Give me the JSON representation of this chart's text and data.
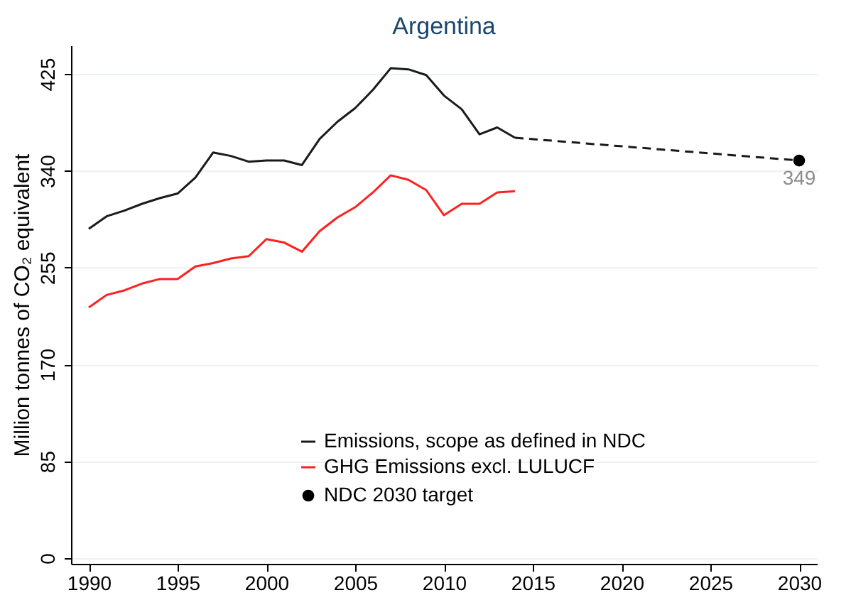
{
  "chart_data": {
    "type": "line",
    "title": "Argentina",
    "ylabel": "Million tonnes of CO₂ equivalent",
    "xlim": [
      1989,
      2031
    ],
    "xticks": [
      1990,
      1995,
      2000,
      2005,
      2010,
      2015,
      2020,
      2025,
      2030
    ],
    "ylim": [
      -5,
      450
    ],
    "yticks": [
      0,
      85,
      170,
      255,
      340,
      425
    ],
    "grid": "y",
    "legend": "bottom right",
    "series": [
      {
        "name": "Emissions, scope as defined in NDC",
        "color": "#1a1a1a",
        "x": [
          1990,
          1991,
          1992,
          1993,
          1994,
          1995,
          1996,
          1997,
          1998,
          1999,
          2000,
          2001,
          2002,
          2003,
          2004,
          2005,
          2006,
          2007,
          2008,
          2009,
          2010,
          2011,
          2012,
          2013,
          2014
        ],
        "values": [
          289,
          300,
          305,
          311,
          316,
          320,
          334,
          356,
          353,
          348,
          349,
          349,
          345,
          368,
          383,
          395,
          411,
          430,
          429,
          424,
          406,
          394,
          372,
          378,
          369
        ]
      },
      {
        "name": "GHG Emissions excl. LULUCF",
        "color": "#ff2020",
        "x": [
          1990,
          1991,
          1992,
          1993,
          1994,
          1995,
          1996,
          1997,
          1998,
          1999,
          2000,
          2001,
          2002,
          2003,
          2004,
          2005,
          2006,
          2007,
          2008,
          2009,
          2010,
          2011,
          2012,
          2013,
          2014
        ],
        "values": [
          220,
          231,
          235,
          241,
          245,
          245,
          256,
          259,
          263,
          265,
          280,
          277,
          269,
          287,
          299,
          308,
          321,
          336,
          332,
          323,
          301,
          311,
          311,
          321,
          322
        ]
      },
      {
        "color": "#1a1a1a",
        "line_style": "dashed",
        "x": [
          2014,
          2030
        ],
        "values": [
          369,
          349
        ]
      },
      {
        "type": "scatter",
        "name": "NDC 2030 target",
        "color": "#000000",
        "marker": "circle",
        "x": [
          2030
        ],
        "values": [
          349
        ],
        "value_labels": [
          "349"
        ]
      }
    ]
  }
}
